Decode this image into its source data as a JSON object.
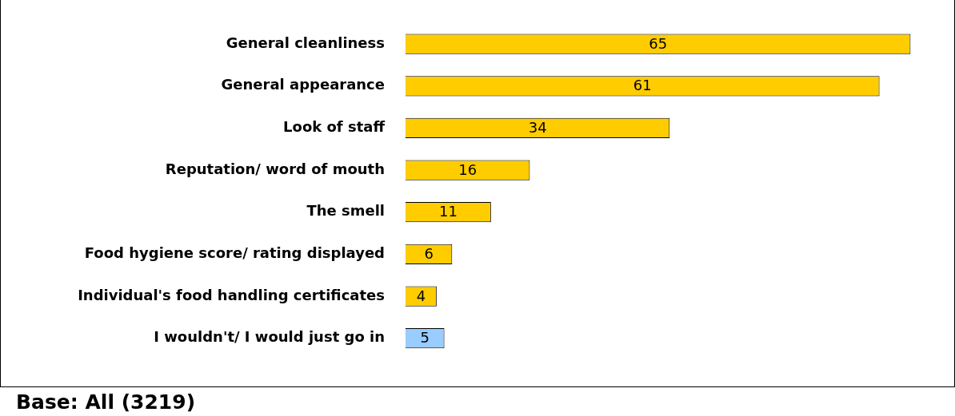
{
  "chart_data": {
    "type": "bar",
    "orientation": "horizontal",
    "categories": [
      "General cleanliness",
      "General appearance",
      "Look of staff",
      "Reputation/ word of mouth",
      "The smell",
      "Food hygiene score/ rating displayed",
      "Individual's food handling certificates",
      "I wouldn't/ I would just go in"
    ],
    "values": [
      65,
      61,
      34,
      16,
      11,
      6,
      4,
      5
    ],
    "colors": [
      "#ffcc00",
      "#ffcc00",
      "#ffcc00",
      "#ffcc00",
      "#ffcc00",
      "#ffcc00",
      "#ffcc00",
      "#99ccff"
    ],
    "data_labels": true,
    "annotations": [
      "Base: All (3219)"
    ]
  }
}
